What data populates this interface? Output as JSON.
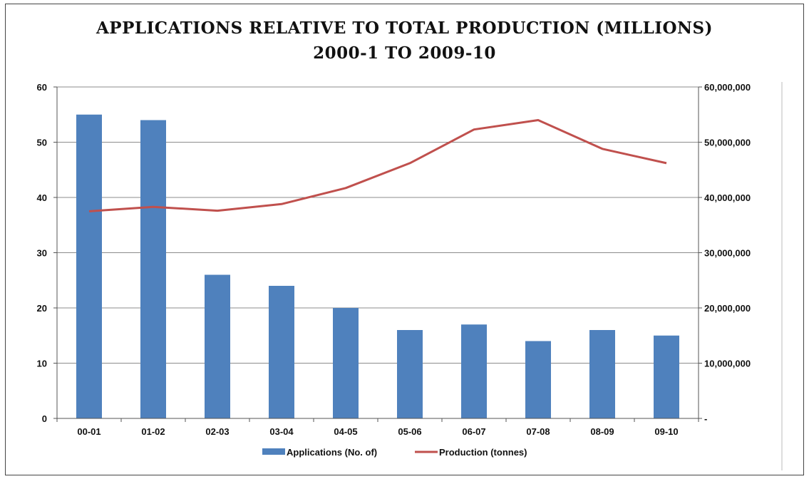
{
  "chart_data": {
    "type": "bar",
    "title_line1": "APPLICATIONS RELATIVE TO TOTAL PRODUCTION (MILLIONS)",
    "title_line2": "2000-1 TO 2009-10",
    "categories": [
      "00-01",
      "01-02",
      "02-03",
      "03-04",
      "04-05",
      "05-06",
      "06-07",
      "07-08",
      "08-09",
      "09-10"
    ],
    "series": [
      {
        "name": "Applications (No. of)",
        "type": "bar",
        "axis": "left",
        "color": "#4F81BD",
        "values": [
          55,
          54,
          26,
          24,
          20,
          16,
          17,
          14,
          16,
          15
        ]
      },
      {
        "name": "Production (tonnes)",
        "type": "line",
        "axis": "right",
        "color": "#C0504D",
        "values": [
          37500000,
          38300000,
          37600000,
          38800000,
          41700000,
          46200000,
          52300000,
          54000000,
          48800000,
          46200000
        ]
      }
    ],
    "y_left": {
      "min": 0,
      "max": 60,
      "ticks": [
        "0",
        "10",
        "20",
        "30",
        "40",
        "50",
        "60"
      ]
    },
    "y_right": {
      "min": 0,
      "max": 60000000,
      "ticks": [
        "-",
        "10,000,000",
        "20,000,000",
        "30,000,000",
        "40,000,000",
        "50,000,000",
        "60,000,000"
      ]
    },
    "grid": true,
    "legend": "bottom"
  }
}
